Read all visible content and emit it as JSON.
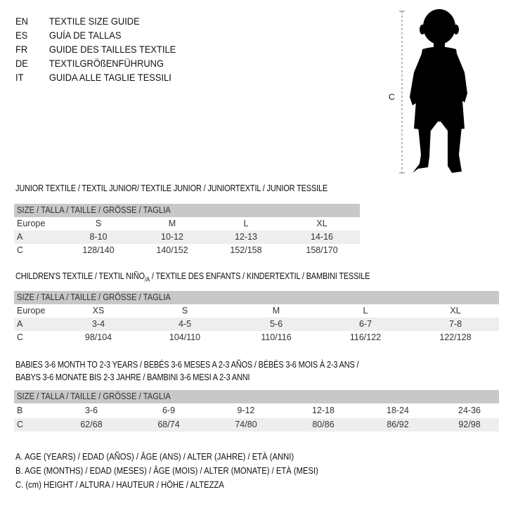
{
  "languages": [
    {
      "code": "EN",
      "text": "TEXTILE SIZE GUIDE"
    },
    {
      "code": "ES",
      "text": "GUÍA DE TALLAS"
    },
    {
      "code": "FR",
      "text": "GUIDE DES TAILLES TEXTILE"
    },
    {
      "code": "DE",
      "text": "TEXTILGRÖßENFÜHRUNG"
    },
    {
      "code": "IT",
      "text": "GUIDA ALLE TAGLIE TESSILI"
    }
  ],
  "figure": {
    "measure_label": "C"
  },
  "junior": {
    "title": "JUNIOR TEXTILE / TEXTIL JUNIOR/ TEXTILE JUNIOR / JUNIORTEXTIL / JUNIOR TESSILE",
    "header": "SIZE / TALLA / TAILLE / GRÖSSE / TAGLIA",
    "rows": [
      {
        "label": "Europe",
        "cells": [
          "S",
          "M",
          "L",
          "XL"
        ]
      },
      {
        "label": "A",
        "cells": [
          "8-10",
          "10-12",
          "12-13",
          "14-16"
        ]
      },
      {
        "label": "C",
        "cells": [
          "128/140",
          "140/152",
          "152/158",
          "158/170"
        ]
      }
    ]
  },
  "children": {
    "title_part1": "CHILDREN'S TEXTILE / TEXTIL NIÑO",
    "title_sub": "/A",
    "title_part2": " / TEXTILE DES ENFANTS / KINDERTEXTIL / BAMBINI TESSILE",
    "header": "SIZE / TALLA / TAILLE / GRÖSSE / TAGLIA",
    "rows": [
      {
        "label": "Europe",
        "cells": [
          "XS",
          "S",
          "M",
          "L",
          "XL"
        ]
      },
      {
        "label": "A",
        "cells": [
          "3-4",
          "4-5",
          "5-6",
          "6-7",
          "7-8"
        ]
      },
      {
        "label": "C",
        "cells": [
          "98/104",
          "104/110",
          "110/116",
          "116/122",
          "122/128"
        ]
      }
    ]
  },
  "babies": {
    "title_line1": "BABIES 3-6 MONTH TO 2-3 YEARS / BEBÉS 3-6 MESES A 2-3 AÑOS / BÉBÉS 3-6 MOIS À 2-3 ANS /",
    "title_line2": "BABYS 3-6 MONATE BIS 2-3 JAHRE / BAMBINI 3-6 MESI A 2-3 ANNI",
    "header": "SIZE / TALLA / TAILLE / GRÖSSE / TAGLIA",
    "rows": [
      {
        "label": "B",
        "cells": [
          "3-6",
          "6-9",
          "9-12",
          "12-18",
          "18-24",
          "24-36"
        ]
      },
      {
        "label": "C",
        "cells": [
          "62/68",
          "68/74",
          "74/80",
          "80/86",
          "86/92",
          "92/98"
        ]
      }
    ]
  },
  "legend": [
    "A. AGE (YEARS) / EDAD (AÑOS) / ÂGE (ANS) / ALTER (JAHRE) / ETÀ (ANNI)",
    "B. AGE (MONTHS) / EDAD (MESES) / ÂGE (MOIS) / ALTER (MONATE) / ETÀ (MESI)",
    "C. (cm) HEIGHT / ALTURA / HAUTEUR / HÖHE / ALTEZZA"
  ]
}
